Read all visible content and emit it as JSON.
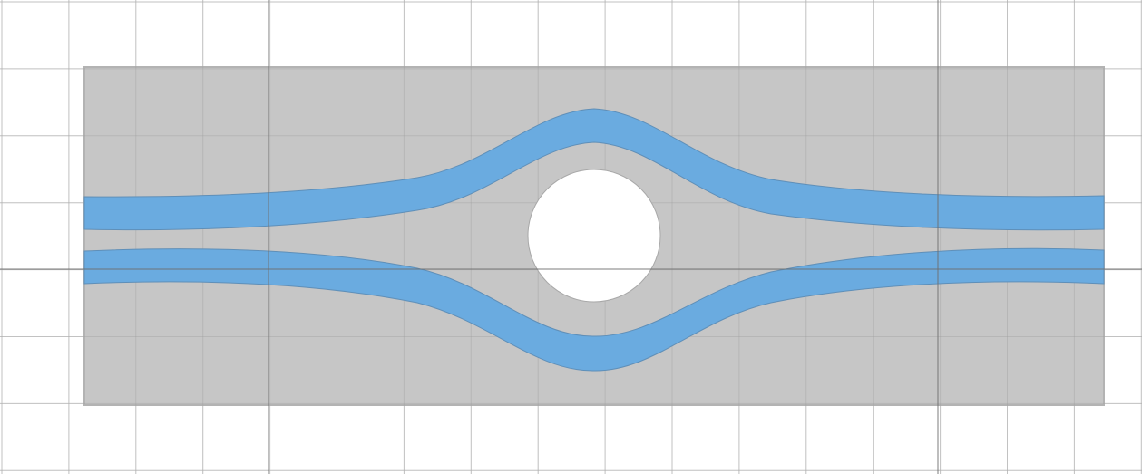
{
  "colors": {
    "background": "#ffffff",
    "grid_minor": "#d9d9d9",
    "grid_major": "#6e6e6e",
    "substrate": "#c6c6c6",
    "substrate_edge": "#b3b3b3",
    "channel": "#6aabe0",
    "channel_edge": "#5f8fb8",
    "hole": "#ffffff",
    "hole_edge": "#a8a8a8"
  },
  "scene": {
    "description_shapes": [
      "grid",
      "substrate-rectangle",
      "upper-channel",
      "lower-channel",
      "circular-hole"
    ]
  }
}
